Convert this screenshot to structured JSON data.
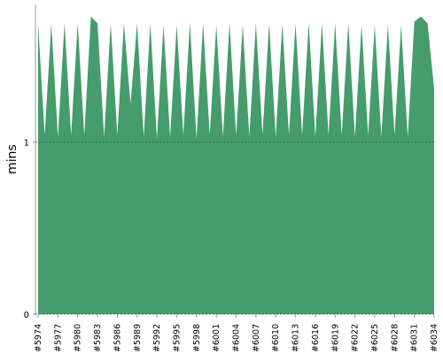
{
  "chart_data": {
    "type": "area",
    "y_label": "mins",
    "categories": [
      "#5974",
      null,
      null,
      "#5977",
      null,
      null,
      "#5980",
      null,
      null,
      "#5983",
      null,
      null,
      "#5986",
      null,
      null,
      "#5989",
      null,
      null,
      "#5992",
      null,
      null,
      "#5995",
      null,
      null,
      "#5998",
      null,
      null,
      "#6001",
      null,
      null,
      "#6004",
      null,
      null,
      "#6007",
      null,
      null,
      "#6010",
      null,
      null,
      "#6013",
      null,
      null,
      "#6016",
      null,
      null,
      "#6019",
      null,
      null,
      "#6022",
      null,
      null,
      "#6025",
      null,
      null,
      "#6028",
      null,
      null,
      "#6031",
      null,
      null,
      "#6034"
    ],
    "values": [
      1.69,
      1.04,
      1.69,
      1.03,
      1.69,
      1.04,
      1.69,
      1.04,
      1.73,
      1.69,
      1.03,
      1.69,
      1.04,
      1.69,
      1.22,
      1.69,
      1.03,
      1.69,
      1.02,
      1.68,
      1.03,
      1.68,
      1.04,
      1.69,
      1.02,
      1.69,
      1.04,
      1.68,
      1.03,
      1.69,
      1.04,
      1.68,
      1.03,
      1.69,
      1.04,
      1.69,
      1.03,
      1.69,
      1.04,
      1.69,
      1.04,
      1.69,
      1.03,
      1.69,
      1.04,
      1.69,
      1.04,
      1.69,
      1.03,
      1.68,
      1.04,
      1.68,
      1.03,
      1.68,
      1.04,
      1.68,
      1.03,
      1.7,
      1.73,
      1.69,
      1.31
    ],
    "color": "#459c6c",
    "ylim": [
      0,
      1.8
    ],
    "yticks": [
      0,
      1
    ],
    "grid": true
  }
}
